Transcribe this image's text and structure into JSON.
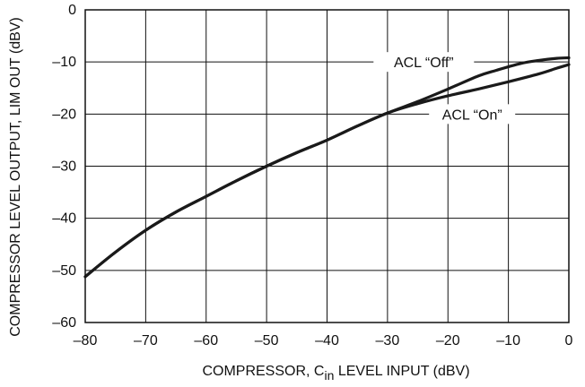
{
  "chart_data": {
    "type": "line",
    "title": "",
    "xlabel_parts": {
      "pre": "COMPRESSOR, C",
      "sub": "in",
      "post": " LEVEL INPUT (dBV)"
    },
    "ylabel": "COMPRESSOR LEVEL OUTPUT, LIM OUT (dBV)",
    "xlim": [
      -80,
      0
    ],
    "ylim": [
      -60,
      0
    ],
    "xticks": [
      -80,
      -70,
      -60,
      -50,
      -40,
      -30,
      -20,
      -10,
      0
    ],
    "yticks": [
      0,
      -10,
      -20,
      -30,
      -40,
      -50,
      -60
    ],
    "xtick_labels": [
      "–80",
      "–70",
      "–60",
      "–50",
      "–40",
      "–30",
      "–20",
      "–10",
      "0"
    ],
    "ytick_labels": [
      "0",
      "–10",
      "–20",
      "–30",
      "–40",
      "–50",
      "–60"
    ],
    "grid": true,
    "series": [
      {
        "name": "ACL “Off”",
        "x": [
          -80,
          -75,
          -70,
          -65,
          -60,
          -55,
          -50,
          -45,
          -40,
          -35,
          -30,
          -25,
          -20,
          -15,
          -12,
          -8,
          -5,
          -2,
          0
        ],
        "y": [
          -51.2,
          -46.5,
          -42.3,
          -38.8,
          -35.8,
          -32.8,
          -30.0,
          -27.4,
          -25.0,
          -22.3,
          -19.8,
          -17.6,
          -15.2,
          -12.7,
          -11.6,
          -10.3,
          -9.7,
          -9.3,
          -9.2
        ]
      },
      {
        "name": "ACL “On”",
        "x": [
          -80,
          -75,
          -70,
          -65,
          -60,
          -55,
          -50,
          -45,
          -40,
          -35,
          -30,
          -25,
          -20,
          -15,
          -10,
          -5,
          -2,
          0
        ],
        "y": [
          -51.2,
          -46.5,
          -42.3,
          -38.8,
          -35.8,
          -32.8,
          -30.0,
          -27.4,
          -25.0,
          -22.3,
          -19.8,
          -18.0,
          -16.5,
          -15.2,
          -13.8,
          -12.3,
          -11.2,
          -10.5
        ]
      }
    ],
    "annotations": [
      {
        "text": "ACL “Off”",
        "series": 0
      },
      {
        "text": "ACL “On”",
        "series": 1
      }
    ]
  }
}
